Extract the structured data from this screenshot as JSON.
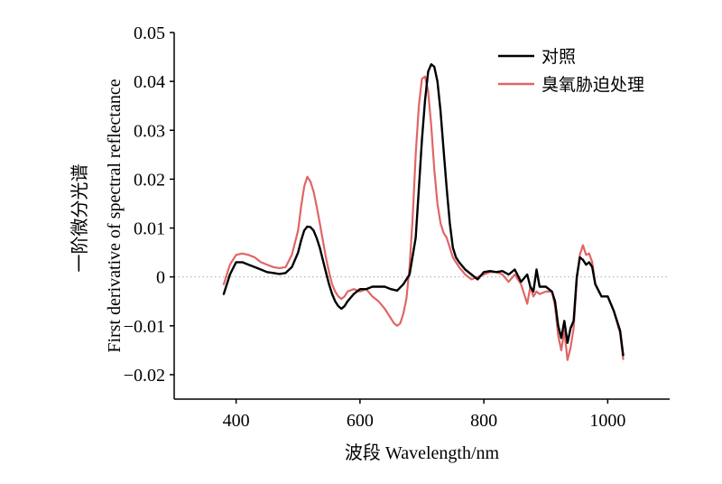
{
  "chart_data": {
    "type": "line",
    "xlabel": "波段 Wavelength/nm",
    "ylabel_cn": "一阶微分光谱",
    "ylabel_en": "First derivative of spectral reflectance",
    "xlim": [
      300,
      1100
    ],
    "ylim": [
      -0.025,
      0.05
    ],
    "xticks": [
      400,
      600,
      800,
      1000
    ],
    "yticks": [
      -0.02,
      -0.01,
      0,
      0.01,
      0.02,
      0.03,
      0.04,
      0.05
    ],
    "ytick_labels": [
      "−0.02",
      "−0.01",
      "0",
      "0.01",
      "0.02",
      "0.03",
      "0.04",
      "0.05"
    ],
    "zero_line": {
      "style": "dotted",
      "color": "#aaaaaa"
    },
    "legend": {
      "placement": "top-right"
    },
    "series": [
      {
        "name": "对照",
        "color": "#000000",
        "x": [
          380,
          390,
          400,
          410,
          420,
          430,
          440,
          450,
          460,
          470,
          480,
          490,
          500,
          505,
          510,
          515,
          520,
          525,
          530,
          535,
          540,
          545,
          550,
          555,
          560,
          565,
          570,
          575,
          580,
          590,
          600,
          610,
          620,
          630,
          640,
          650,
          660,
          670,
          680,
          690,
          695,
          700,
          705,
          710,
          715,
          720,
          725,
          730,
          735,
          740,
          745,
          750,
          755,
          760,
          770,
          780,
          790,
          800,
          810,
          820,
          830,
          840,
          850,
          860,
          870,
          875,
          880,
          885,
          890,
          900,
          910,
          915,
          920,
          925,
          930,
          935,
          940,
          945,
          950,
          955,
          960,
          965,
          970,
          975,
          980,
          990,
          1000,
          1010,
          1020,
          1025
        ],
        "y": [
          -0.0035,
          0.0005,
          0.003,
          0.003,
          0.0025,
          0.002,
          0.0015,
          0.001,
          0.0008,
          0.0006,
          0.0008,
          0.002,
          0.005,
          0.0075,
          0.0095,
          0.0103,
          0.0102,
          0.0095,
          0.008,
          0.006,
          0.0035,
          0.001,
          -0.0015,
          -0.0035,
          -0.005,
          -0.006,
          -0.0065,
          -0.006,
          -0.005,
          -0.0035,
          -0.0025,
          -0.0025,
          -0.002,
          -0.002,
          -0.002,
          -0.0025,
          -0.0028,
          -0.0015,
          0.0005,
          0.008,
          0.018,
          0.028,
          0.036,
          0.042,
          0.0435,
          0.043,
          0.04,
          0.034,
          0.026,
          0.018,
          0.011,
          0.006,
          0.004,
          0.003,
          0.0015,
          0.0005,
          -0.0005,
          0.001,
          0.0012,
          0.001,
          0.0012,
          0.0005,
          0.0015,
          -0.001,
          0.0005,
          -0.002,
          -0.003,
          0.0015,
          -0.002,
          -0.002,
          -0.003,
          -0.005,
          -0.01,
          -0.0125,
          -0.009,
          -0.0135,
          -0.0105,
          -0.009,
          0.0,
          0.004,
          0.0035,
          0.0025,
          0.003,
          0.002,
          -0.0015,
          -0.004,
          -0.004,
          -0.007,
          -0.011,
          -0.016
        ]
      },
      {
        "name": "臭氧胁迫处理",
        "color": "#e06666",
        "x": [
          380,
          390,
          400,
          410,
          420,
          430,
          440,
          450,
          460,
          470,
          480,
          490,
          500,
          505,
          510,
          515,
          520,
          525,
          530,
          535,
          540,
          545,
          550,
          555,
          560,
          565,
          570,
          575,
          580,
          590,
          600,
          610,
          620,
          630,
          640,
          650,
          655,
          660,
          665,
          670,
          675,
          680,
          685,
          690,
          695,
          700,
          705,
          710,
          715,
          720,
          725,
          730,
          735,
          740,
          745,
          750,
          755,
          760,
          770,
          780,
          790,
          800,
          810,
          820,
          830,
          840,
          850,
          860,
          870,
          875,
          880,
          885,
          890,
          900,
          910,
          915,
          920,
          925,
          930,
          935,
          940,
          945,
          950,
          955,
          960,
          965,
          970,
          975,
          980,
          990,
          1000,
          1010,
          1020,
          1025
        ],
        "y": [
          -0.0015,
          0.0025,
          0.0045,
          0.0048,
          0.0045,
          0.004,
          0.003,
          0.0025,
          0.002,
          0.0018,
          0.002,
          0.0045,
          0.0095,
          0.0145,
          0.0185,
          0.0205,
          0.0195,
          0.0175,
          0.0145,
          0.011,
          0.0075,
          0.004,
          0.001,
          -0.0015,
          -0.003,
          -0.004,
          -0.0045,
          -0.004,
          -0.003,
          -0.0025,
          -0.003,
          -0.0025,
          -0.004,
          -0.005,
          -0.0065,
          -0.0085,
          -0.0095,
          -0.01,
          -0.0095,
          -0.0075,
          -0.0045,
          0.002,
          0.012,
          0.025,
          0.035,
          0.0405,
          0.041,
          0.038,
          0.031,
          0.022,
          0.015,
          0.011,
          0.009,
          0.008,
          0.006,
          0.004,
          0.003,
          0.002,
          0.0005,
          -0.0005,
          0.0,
          0.0005,
          0.001,
          0.001,
          0.0005,
          -0.001,
          0.0005,
          -0.0015,
          -0.0055,
          -0.002,
          -0.004,
          -0.003,
          -0.0035,
          -0.003,
          -0.003,
          -0.006,
          -0.012,
          -0.015,
          -0.011,
          -0.017,
          -0.0145,
          -0.0105,
          -0.0005,
          0.0045,
          0.0065,
          0.0045,
          0.0048,
          0.003,
          -0.0015,
          -0.004,
          -0.004,
          -0.007,
          -0.0115,
          -0.0168
        ]
      }
    ]
  }
}
